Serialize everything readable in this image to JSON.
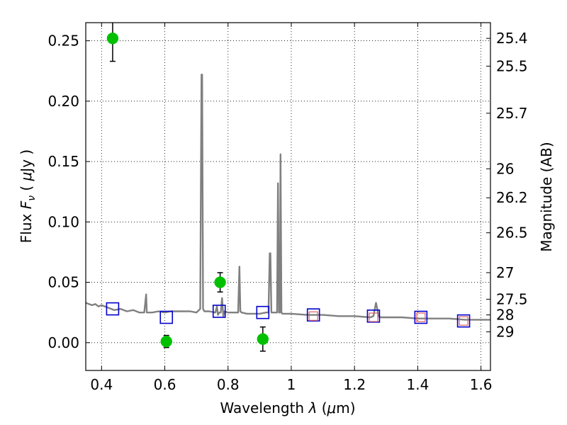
{
  "chart_data": {
    "type": "scatter",
    "xlabel_text": "Wavelength",
    "xlabel_symbol": "λ",
    "xlabel_unit_open": "(",
    "xlabel_unit_mu": "μ",
    "xlabel_unit_rest": "m)",
    "ylabel_text": "Flux",
    "ylabel_symbol": "F",
    "ylabel_sub": "ν",
    "ylabel_unit_open": "(",
    "ylabel_unit_mu": "μ",
    "ylabel_unit_rest": "Jy )",
    "y2label": "Magnitude (AB)",
    "xlim": [
      0.35,
      1.63
    ],
    "ylim": [
      -0.023,
      0.265
    ],
    "grid": true,
    "x_ticks": [
      {
        "value": 0.4,
        "label": "0.4"
      },
      {
        "value": 0.6,
        "label": "0.6"
      },
      {
        "value": 0.8,
        "label": "0.8"
      },
      {
        "value": 1.0,
        "label": "1"
      },
      {
        "value": 1.2,
        "label": "1.2"
      },
      {
        "value": 1.4,
        "label": "1.4"
      },
      {
        "value": 1.6,
        "label": "1.6"
      }
    ],
    "y_ticks": [
      {
        "value": 0.0,
        "label": "0.00"
      },
      {
        "value": 0.05,
        "label": "0.05"
      },
      {
        "value": 0.1,
        "label": "0.10"
      },
      {
        "value": 0.15,
        "label": "0.15"
      },
      {
        "value": 0.2,
        "label": "0.20"
      },
      {
        "value": 0.25,
        "label": "0.25"
      }
    ],
    "y2_ticks": [
      {
        "flux": 0.252,
        "label": "25.4"
      },
      {
        "flux": 0.229,
        "label": "25.5"
      },
      {
        "flux": 0.19,
        "label": "25.7"
      },
      {
        "flux": 0.144,
        "label": "26"
      },
      {
        "flux": 0.12,
        "label": "26.2"
      },
      {
        "flux": 0.091,
        "label": "26.5"
      },
      {
        "flux": 0.058,
        "label": "27"
      },
      {
        "flux": 0.036,
        "label": "27.5"
      },
      {
        "flux": 0.023,
        "label": "28"
      },
      {
        "flux": 0.009,
        "label": "29"
      }
    ],
    "series": [
      {
        "style": "line",
        "color": "#808080",
        "x": [
          0.35,
          0.36,
          0.37,
          0.38,
          0.39,
          0.4,
          0.42,
          0.44,
          0.46,
          0.48,
          0.5,
          0.52,
          0.535,
          0.541,
          0.543,
          0.547,
          0.56,
          0.58,
          0.6,
          0.62,
          0.64,
          0.66,
          0.68,
          0.7,
          0.712,
          0.716,
          0.718,
          0.721,
          0.725,
          0.74,
          0.76,
          0.765,
          0.768,
          0.772,
          0.777,
          0.781,
          0.785,
          0.788,
          0.8,
          0.82,
          0.832,
          0.836,
          0.839,
          0.843,
          0.86,
          0.88,
          0.9,
          0.92,
          0.928,
          0.932,
          0.934,
          0.937,
          0.942,
          0.95,
          0.955,
          0.958,
          0.961,
          0.964,
          0.966,
          0.969,
          0.972,
          0.98,
          1.0,
          1.05,
          1.1,
          1.15,
          1.2,
          1.25,
          1.26,
          1.268,
          1.272,
          1.276,
          1.282,
          1.3,
          1.35,
          1.4,
          1.45,
          1.5,
          1.55,
          1.6,
          1.63
        ],
        "y": [
          0.033,
          0.032,
          0.031,
          0.032,
          0.03,
          0.031,
          0.029,
          0.027,
          0.028,
          0.026,
          0.027,
          0.025,
          0.025,
          0.04,
          0.025,
          0.025,
          0.025,
          0.026,
          0.025,
          0.026,
          0.026,
          0.026,
          0.026,
          0.025,
          0.028,
          0.222,
          0.222,
          0.028,
          0.026,
          0.026,
          0.025,
          0.03,
          0.023,
          0.025,
          0.025,
          0.037,
          0.022,
          0.026,
          0.025,
          0.025,
          0.025,
          0.063,
          0.026,
          0.025,
          0.024,
          0.024,
          0.024,
          0.025,
          0.025,
          0.074,
          0.074,
          0.025,
          0.025,
          0.025,
          0.025,
          0.132,
          0.025,
          0.025,
          0.156,
          0.025,
          0.024,
          0.024,
          0.024,
          0.023,
          0.023,
          0.022,
          0.022,
          0.021,
          0.022,
          0.033,
          0.028,
          0.022,
          0.021,
          0.021,
          0.021,
          0.02,
          0.02,
          0.02,
          0.019,
          0.019,
          0.019
        ]
      },
      {
        "style": "markers",
        "marker": "circle",
        "color": "#00c000",
        "x": [
          0.435,
          0.605,
          0.775,
          0.91
        ],
        "y": [
          0.252,
          0.001,
          0.05,
          0.003
        ],
        "yerr": [
          0.019,
          0.005,
          0.008,
          0.01
        ]
      },
      {
        "style": "markers",
        "marker": "open-square",
        "color": "#0000cc",
        "x": [
          0.435,
          0.605,
          0.772,
          0.91,
          1.07,
          1.26,
          1.41,
          1.545
        ],
        "y": [
          0.028,
          0.021,
          0.026,
          0.025,
          0.023,
          0.022,
          0.021,
          0.018
        ]
      },
      {
        "style": "markers",
        "marker": "open-square-small",
        "color": "#e06060",
        "x": [
          1.07,
          1.26,
          1.41,
          1.545
        ],
        "y": [
          0.022,
          0.021,
          0.021,
          0.018
        ]
      }
    ]
  }
}
